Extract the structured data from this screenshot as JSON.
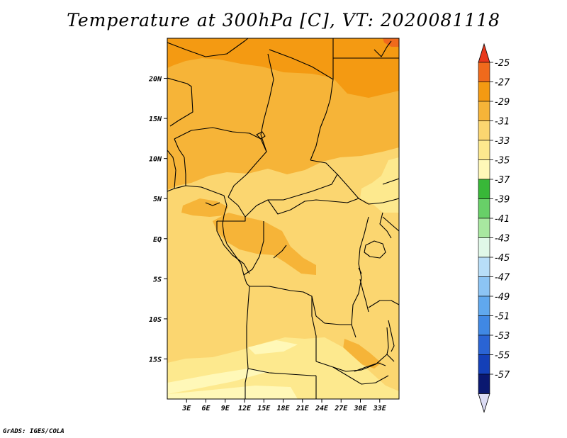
{
  "title": "Temperature at 300hPa [C], VT: 2020081118",
  "credit": "GrADS: IGES/COLA",
  "map": {
    "lon_range": [
      0,
      36
    ],
    "lat_range": [
      -20,
      25
    ],
    "lat_ticks": [
      {
        "value": 20,
        "label": "20N"
      },
      {
        "value": 15,
        "label": "15N"
      },
      {
        "value": 10,
        "label": "10N"
      },
      {
        "value": 5,
        "label": "5N"
      },
      {
        "value": 0,
        "label": "EQ"
      },
      {
        "value": -5,
        "label": "5S"
      },
      {
        "value": -10,
        "label": "10S"
      },
      {
        "value": -15,
        "label": "15S"
      }
    ],
    "lon_ticks": [
      {
        "value": 3,
        "label": "3E"
      },
      {
        "value": 6,
        "label": "6E"
      },
      {
        "value": 9,
        "label": "9E"
      },
      {
        "value": 12,
        "label": "12E"
      },
      {
        "value": 15,
        "label": "15E"
      },
      {
        "value": 18,
        "label": "18E"
      },
      {
        "value": 21,
        "label": "21E"
      },
      {
        "value": 24,
        "label": "24E"
      },
      {
        "value": 27,
        "label": "27E"
      },
      {
        "value": 30,
        "label": "30E"
      },
      {
        "value": 33,
        "label": "33E"
      }
    ]
  },
  "colorbar": {
    "levels": [
      {
        "label": "-25",
        "color": "#f06a1c"
      },
      {
        "label": "-27",
        "color": "#f49a12"
      },
      {
        "label": "-29",
        "color": "#f6b438"
      },
      {
        "label": "-31",
        "color": "#fbd670"
      },
      {
        "label": "-33",
        "color": "#fde98e"
      },
      {
        "label": "-35",
        "color": "#fff8b8"
      },
      {
        "label": "-37",
        "color": "#38b838"
      },
      {
        "label": "-39",
        "color": "#68d068"
      },
      {
        "label": "-41",
        "color": "#a8e8a0"
      },
      {
        "label": "-43",
        "color": "#e0f8e8"
      },
      {
        "label": "-45",
        "color": "#b8def8"
      },
      {
        "label": "-47",
        "color": "#8cc4f4"
      },
      {
        "label": "-49",
        "color": "#60a8ee"
      },
      {
        "label": "-51",
        "color": "#4088e4"
      },
      {
        "label": "-53",
        "color": "#2a64d4"
      },
      {
        "label": "-55",
        "color": "#1440b8"
      },
      {
        "label": "-57",
        "color": "#0a1870"
      }
    ],
    "top_color": "#e8381c",
    "bottom_color": "#dcdcf4"
  },
  "fill_colors": {
    "t27": "#f49a12",
    "t29": "#f6b438",
    "t31": "#fbd670",
    "t33": "#fde98e",
    "t35": "#fff8b8",
    "t25": "#f06a1c"
  }
}
